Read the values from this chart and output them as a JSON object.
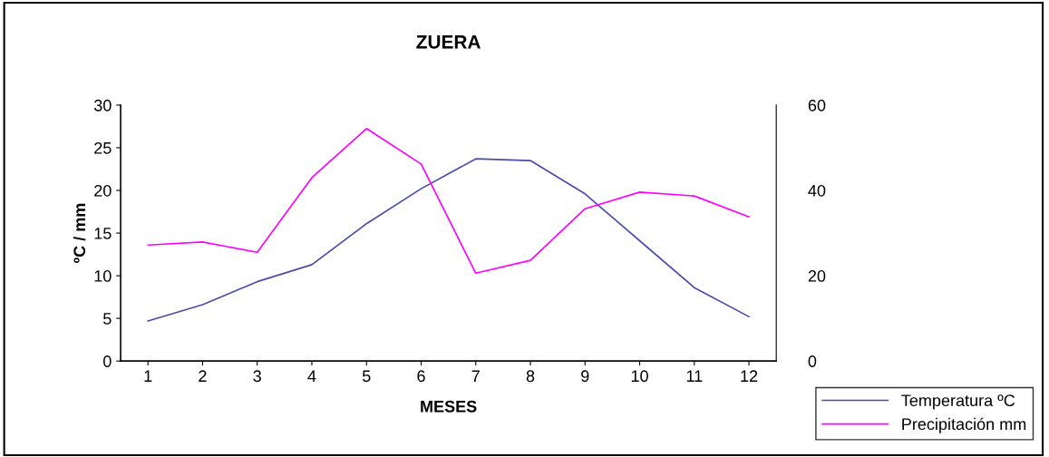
{
  "chart_data": {
    "type": "line",
    "title": "ZUERA",
    "xlabel": "MESES",
    "ylabel": "ºC / mm",
    "categories": [
      "1",
      "2",
      "3",
      "4",
      "5",
      "6",
      "7",
      "8",
      "9",
      "10",
      "11",
      "12"
    ],
    "series": [
      {
        "name": "Temperatura ºC",
        "color": "#4b4bb0",
        "values": [
          4.7,
          6.6,
          9.3,
          11.3,
          16.1,
          20.2,
          23.7,
          23.5,
          19.6,
          14.1,
          8.6,
          5.2
        ]
      },
      {
        "name": "Precipitación mm",
        "color": "#ff00ff",
        "axis": "y2",
        "values": [
          27.2,
          27.9,
          25.5,
          43,
          54.5,
          46.2,
          20.6,
          23.6,
          35.7,
          39.6,
          38.7,
          33.8
        ]
      }
    ],
    "ylim": [
      0,
      30
    ],
    "yticks": [
      0,
      5,
      10,
      15,
      20,
      25,
      30
    ],
    "y2lim": [
      0,
      60
    ],
    "y2ticks": [
      0,
      20,
      40,
      60
    ],
    "grid": false,
    "legend": "bottom right",
    "marker": "none",
    "line_style": "solid"
  }
}
